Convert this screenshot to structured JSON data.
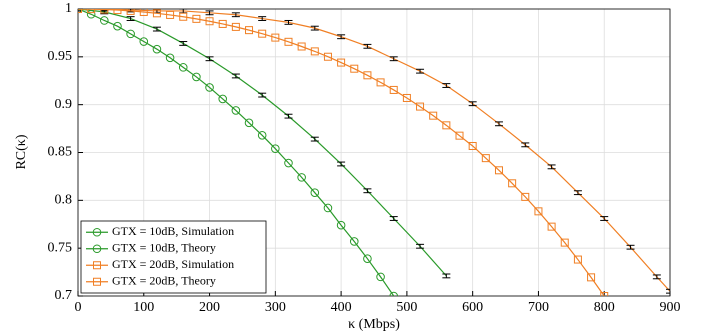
{
  "chart_data": {
    "type": "line",
    "x_label": "κ (Mbps)",
    "y_label": "RC(κ)",
    "xlim": [
      0,
      900
    ],
    "xticks": [
      0,
      100,
      200,
      300,
      400,
      500,
      600,
      700,
      800,
      900
    ],
    "ylim": [
      0.7,
      1
    ],
    "yticks": [
      0.7,
      0.75,
      0.8,
      0.85,
      0.9,
      0.95,
      1
    ],
    "grid": true,
    "legend": "lower left",
    "series": [
      {
        "name": "GTX = 10dB, Simulation",
        "color": "#2a9a2a",
        "marker": "circle",
        "x": [
          0,
          40,
          80,
          120,
          160,
          200,
          240,
          280,
          320,
          360,
          400,
          440,
          480,
          520,
          560
        ],
        "values": [
          1,
          0.997,
          0.99,
          0.979,
          0.964,
          0.948,
          0.93,
          0.91,
          0.888,
          0.864,
          0.838,
          0.81,
          0.781,
          0.752,
          0.721
        ],
        "errors": [
          0.002,
          0.002,
          0.002,
          0.002,
          0.002,
          0.002,
          0.002,
          0.002,
          0.002,
          0.002,
          0.002,
          0.002,
          0.002,
          0.002,
          0.002
        ]
      },
      {
        "name": "GTX = 10dB, Theory",
        "color": "#2a9a2a",
        "marker": "circle",
        "x": [
          0,
          20,
          40,
          60,
          80,
          100,
          120,
          140,
          160,
          180,
          200,
          220,
          240,
          260,
          280,
          300,
          320,
          340,
          360,
          380,
          400,
          420,
          440,
          460,
          480
        ],
        "values": [
          1,
          0.9945,
          0.988,
          0.982,
          0.974,
          0.966,
          0.958,
          0.949,
          0.939,
          0.929,
          0.918,
          0.906,
          0.894,
          0.881,
          0.868,
          0.854,
          0.839,
          0.824,
          0.808,
          0.792,
          0.774,
          0.757,
          0.739,
          0.72,
          0.7
        ]
      },
      {
        "name": "GTX = 20dB, Simulation",
        "color": "#f07f24",
        "marker": "square",
        "x": [
          0,
          40,
          80,
          120,
          160,
          200,
          240,
          280,
          320,
          360,
          400,
          440,
          480,
          520,
          560,
          600,
          640,
          680,
          720,
          760,
          800,
          840,
          880,
          900
        ],
        "values": [
          1,
          1,
          0.999,
          0.998,
          0.998,
          0.996,
          0.994,
          0.99,
          0.986,
          0.98,
          0.971,
          0.961,
          0.948,
          0.935,
          0.92,
          0.901,
          0.88,
          0.858,
          0.835,
          0.808,
          0.781,
          0.751,
          0.72,
          0.705
        ],
        "errors": [
          0.002,
          0.002,
          0.002,
          0.002,
          0.002,
          0.002,
          0.002,
          0.002,
          0.002,
          0.002,
          0.002,
          0.002,
          0.002,
          0.002,
          0.002,
          0.002,
          0.002,
          0.002,
          0.002,
          0.002,
          0.002,
          0.002,
          0.002,
          0.002
        ]
      },
      {
        "name": "GTX = 20dB, Theory",
        "color": "#f07f24",
        "marker": "square",
        "x": [
          0,
          20,
          40,
          60,
          80,
          100,
          120,
          140,
          160,
          180,
          200,
          220,
          240,
          260,
          280,
          300,
          320,
          340,
          360,
          380,
          400,
          420,
          440,
          460,
          480,
          500,
          520,
          540,
          560,
          580,
          600,
          620,
          640,
          660,
          680,
          700,
          720,
          740,
          760,
          780,
          800
        ],
        "values": [
          1,
          0.9999,
          0.9995,
          0.9989,
          0.998,
          0.9969,
          0.9955,
          0.9938,
          0.9919,
          0.9897,
          0.9872,
          0.9844,
          0.9813,
          0.9779,
          0.9742,
          0.9701,
          0.9657,
          0.9608,
          0.9557,
          0.9501,
          0.944,
          0.9376,
          0.9307,
          0.9233,
          0.9154,
          0.907,
          0.898,
          0.8885,
          0.8784,
          0.8676,
          0.8568,
          0.8441,
          0.8314,
          0.8178,
          0.8036,
          0.7885,
          0.7725,
          0.7558,
          0.7381,
          0.7195,
          0.7
        ]
      }
    ]
  }
}
